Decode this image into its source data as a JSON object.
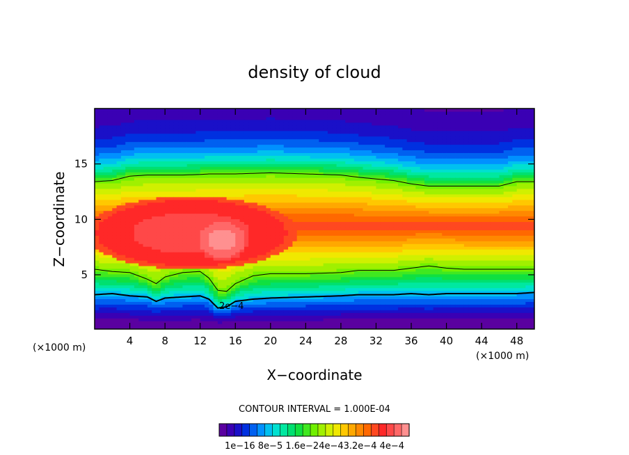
{
  "chart_data": {
    "type": "heatmap",
    "title": "density of cloud",
    "xlabel": "X−coordinate",
    "ylabel": "Z−coordinate",
    "x_unit_label": "(×1000 m)",
    "z_unit_label": "(×1000 m)",
    "xlim": [
      0,
      50
    ],
    "ylim": [
      0.1,
      20
    ],
    "x_ticks": [
      4,
      8,
      12,
      16,
      20,
      24,
      28,
      32,
      36,
      40,
      44,
      48
    ],
    "x_tick_labels": [
      "4",
      "8",
      "12",
      "16",
      "20",
      "24",
      "28",
      "32",
      "36",
      "40",
      "44",
      "48"
    ],
    "y_ticks": [
      5,
      10,
      15
    ],
    "y_tick_labels": [
      "5",
      "10",
      "15"
    ],
    "contour_interval_text": "CONTOUR INTERVAL = 1.000E-04",
    "contour_annotation": "2e−4",
    "colorbar_labels": [
      "1e−16",
      "8e−5",
      "1.6e−4",
      "2.4e−4",
      "3.2e−4",
      "4e−4"
    ],
    "colorbar_label_text": "1e−16  8e−5  1.6e−24e−43.2e−4  4e−4",
    "vmin": 0,
    "vmax": 0.0004,
    "colors": [
      "#5a00a0",
      "#3a00b4",
      "#1a10c8",
      "#0030e0",
      "#0060f0",
      "#0090ff",
      "#00c0f0",
      "#00e0d0",
      "#00e8a0",
      "#00e070",
      "#10e040",
      "#40e820",
      "#70f000",
      "#a0f000",
      "#d0f000",
      "#f0e800",
      "#ffc800",
      "#ffa800",
      "#ff8800",
      "#ff6800",
      "#ff4820",
      "#ff2828",
      "#ff4848",
      "#ff6868",
      "#ff9090"
    ],
    "profile": {
      "x": [
        0,
        2,
        4,
        6,
        7,
        8,
        10,
        12,
        13,
        14,
        15,
        16,
        18,
        20,
        24,
        28,
        30,
        34,
        36,
        38,
        40,
        42,
        44,
        46,
        48,
        50
      ],
      "cloud_top_km": [
        13.4,
        13.5,
        13.9,
        14.0,
        14.0,
        14.0,
        14.0,
        14.05,
        14.1,
        14.1,
        14.1,
        14.1,
        14.15,
        14.2,
        14.1,
        14.0,
        13.8,
        13.5,
        13.2,
        13.0,
        13.0,
        13.0,
        13.0,
        13.0,
        13.4,
        13.4
      ],
      "level_2e4_lower_km": [
        5.5,
        5.3,
        5.2,
        4.6,
        4.2,
        4.8,
        5.2,
        5.3,
        4.7,
        3.6,
        3.5,
        4.2,
        4.9,
        5.1,
        5.1,
        5.2,
        5.4,
        5.4,
        5.6,
        5.8,
        5.6,
        5.5,
        5.5,
        5.5,
        5.5,
        5.5
      ],
      "level_4e4_lower_km": [
        3.2,
        3.3,
        3.1,
        3.0,
        2.6,
        2.9,
        3.0,
        3.1,
        2.8,
        2.0,
        2.1,
        2.6,
        2.8,
        2.9,
        3.0,
        3.1,
        3.2,
        3.2,
        3.3,
        3.2,
        3.3,
        3.3,
        3.3,
        3.3,
        3.3,
        3.4
      ],
      "core": [
        {
          "x": 14.5,
          "z": 8.2,
          "rx": 3.0,
          "rz": 1.9,
          "value": 0.000392
        },
        {
          "x": 11.0,
          "z": 8.8,
          "rx": 12.0,
          "rz": 3.3,
          "value": 0.000362
        }
      ]
    }
  }
}
